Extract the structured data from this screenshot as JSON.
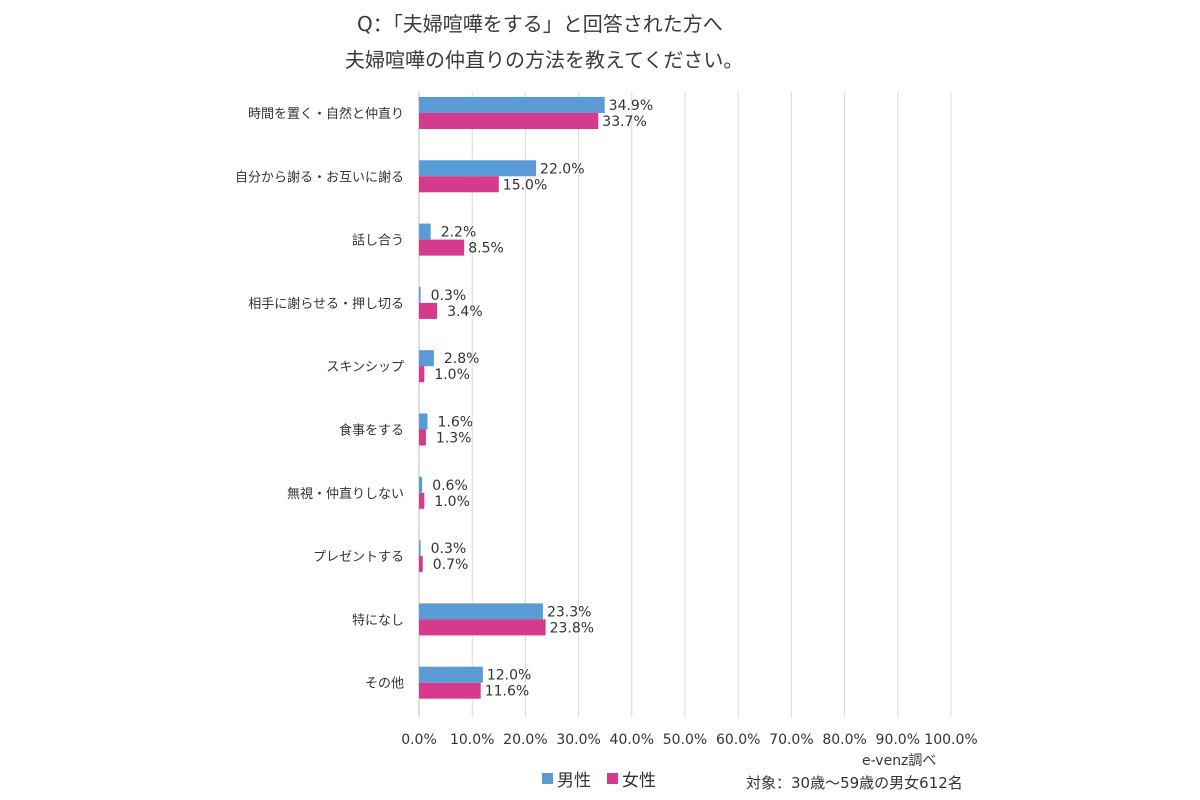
{
  "title": {
    "line1": "Q：「夫婦喧嘩をする」と回答された方へ",
    "line2": "夫婦喧嘩の仲直りの方法を教えてください。"
  },
  "source": "e-venz調べ",
  "sample_note": "対象：30歳～59歳の男女612名",
  "colors": {
    "male": "#5b9bd5",
    "female": "#d63a8c",
    "grid": "#d9d9d9"
  },
  "chart_data": {
    "type": "bar",
    "orientation": "horizontal",
    "categories": [
      "時間を置く・自然と仲直り",
      "自分から謝る・お互いに謝る",
      "話し合う",
      "相手に謝らせる・押し切る",
      "スキンシップ",
      "食事をする",
      "無視・仲直りしない",
      "プレゼントする",
      "特になし",
      "その他"
    ],
    "series": [
      {
        "name": "男性",
        "values": [
          34.9,
          22.0,
          2.2,
          0.3,
          2.8,
          1.6,
          0.6,
          0.3,
          23.3,
          12.0
        ],
        "labels": [
          "34.9%",
          "22.0%",
          "2.2%",
          "0.3%",
          "2.8%",
          "1.6%",
          "0.6%",
          "0.3%",
          "23.3%",
          "12.0%"
        ]
      },
      {
        "name": "女性",
        "values": [
          33.7,
          15.0,
          8.5,
          3.4,
          1.0,
          1.3,
          1.0,
          0.7,
          23.8,
          11.6
        ],
        "labels": [
          "33.7%",
          "15.0%",
          "8.5%",
          "3.4%",
          "1.0%",
          "1.3%",
          "1.0%",
          "0.7%",
          "23.8%",
          "11.6%"
        ]
      }
    ],
    "xlim": [
      0,
      100
    ],
    "xticks": [
      0,
      10,
      20,
      30,
      40,
      50,
      60,
      70,
      80,
      90,
      100
    ],
    "xtick_labels": [
      "0.0%",
      "10.0%",
      "20.0%",
      "30.0%",
      "40.0%",
      "50.0%",
      "60.0%",
      "70.0%",
      "80.0%",
      "90.0%",
      "100.0%"
    ],
    "grid": true,
    "legend_position": "bottom"
  }
}
